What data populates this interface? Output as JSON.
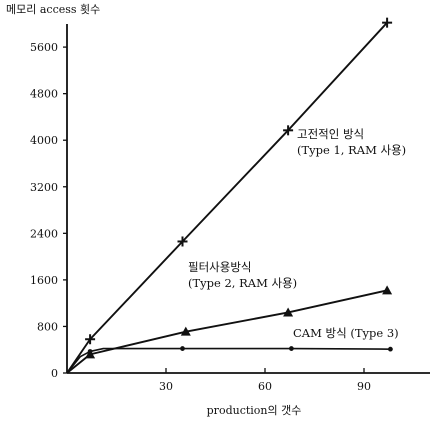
{
  "chart_data": {
    "type": "line",
    "title": "",
    "ylabel": "메모리 access 횟수",
    "xlabel": "production의 갯수",
    "xlim": [
      0,
      110
    ],
    "ylim": [
      0,
      6100
    ],
    "x_ticks": [
      30,
      60,
      90
    ],
    "x_tick_labels": [
      "30",
      "60",
      "90"
    ],
    "y_ticks": [
      0,
      800,
      1600,
      2400,
      3200,
      4000,
      4800,
      5600
    ],
    "y_tick_labels": [
      "0",
      "800",
      "1600",
      "2400",
      "3200",
      "4000",
      "4800",
      "5600"
    ],
    "grid": false,
    "legend": "none",
    "series": [
      {
        "name": "고전적인 방식 (Type 1, RAM 사용)",
        "marker": "plus",
        "x": [
          0,
          7,
          35,
          67,
          97
        ],
        "y": [
          0,
          580,
          2260,
          4170,
          6020
        ]
      },
      {
        "name": "필터사용방식 (Type 2, RAM 사용)",
        "marker": "triangle",
        "x": [
          0,
          7,
          36,
          67,
          97
        ],
        "y": [
          0,
          320,
          710,
          1040,
          1420
        ]
      },
      {
        "name": "CAM 방식 (Type 3)",
        "marker": "dot",
        "x": [
          0,
          4,
          7,
          11,
          35,
          68,
          98
        ],
        "y": [
          0,
          280,
          370,
          420,
          420,
          420,
          410
        ]
      }
    ],
    "annotations": [
      {
        "series": 0,
        "lines": [
          "고전적인 방식",
          "(Type 1, RAM 사용)"
        ]
      },
      {
        "series": 1,
        "lines": [
          "필터사용방식",
          "(Type 2, RAM 사용)"
        ]
      },
      {
        "series": 2,
        "lines": [
          "CAM 방식 (Type 3)"
        ]
      }
    ],
    "colors": {
      "line": "#111111",
      "background": "#ffffff"
    }
  }
}
